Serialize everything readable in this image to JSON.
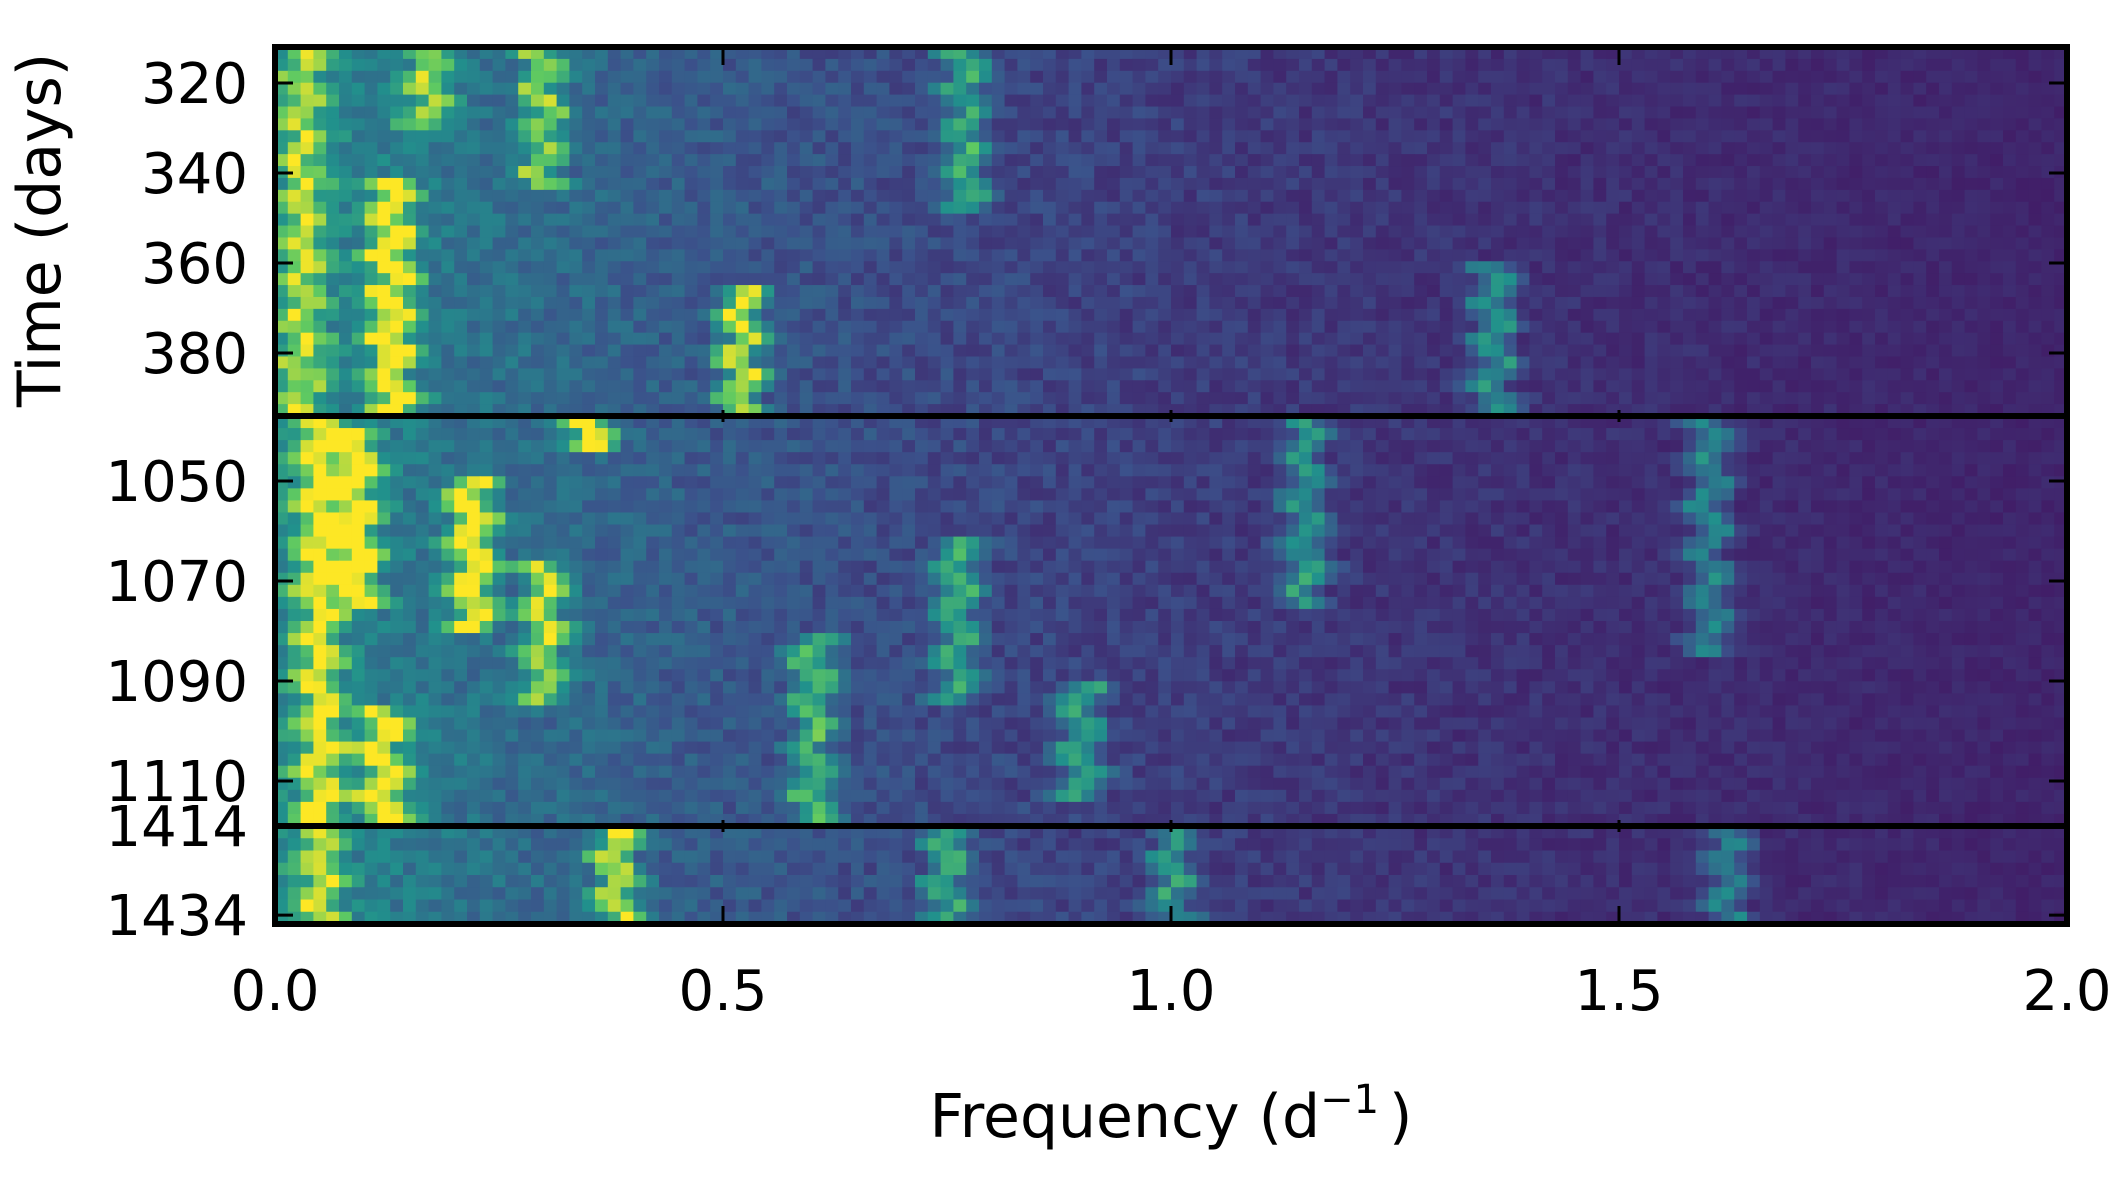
{
  "chart_data": {
    "type": "heatmap",
    "title": "",
    "xlabel": "Frequency (d",
    "xlabel_sup": "−1",
    "xlabel_close": ")",
    "ylabel": "Time (days)",
    "xlim": [
      0.0,
      2.0
    ],
    "x_ticks": [
      "0.0",
      "0.5",
      "1.0",
      "1.5",
      "2.0"
    ],
    "colormap": "viridis",
    "grid": false,
    "legend": "none",
    "panels": [
      {
        "time_range": [
          312,
          394
        ],
        "y_ticks": [
          320,
          340,
          360,
          380
        ],
        "power_ridges": [
          {
            "freq": 0.03,
            "t_start": 312,
            "t_end": 394,
            "power": 0.55
          },
          {
            "freq": 0.13,
            "t_start": 340,
            "t_end": 394,
            "power": 0.9
          },
          {
            "freq": 0.17,
            "t_start": 312,
            "t_end": 330,
            "power": 0.6
          },
          {
            "freq": 0.3,
            "t_start": 312,
            "t_end": 345,
            "power": 0.6
          },
          {
            "freq": 0.52,
            "t_start": 365,
            "t_end": 394,
            "power": 0.8
          },
          {
            "freq": 0.77,
            "t_start": 312,
            "t_end": 350,
            "power": 0.5
          },
          {
            "freq": 1.36,
            "t_start": 360,
            "t_end": 394,
            "power": 0.45
          }
        ]
      },
      {
        "time_range": [
          1037,
          1119
        ],
        "y_ticks": [
          1050,
          1070,
          1090,
          1110
        ],
        "power_ridges": [
          {
            "freq": 0.05,
            "t_start": 1037,
            "t_end": 1119,
            "power": 0.75
          },
          {
            "freq": 0.09,
            "t_start": 1040,
            "t_end": 1075,
            "power": 0.9
          },
          {
            "freq": 0.22,
            "t_start": 1050,
            "t_end": 1080,
            "power": 0.95
          },
          {
            "freq": 0.35,
            "t_start": 1037,
            "t_end": 1045,
            "power": 0.95
          },
          {
            "freq": 0.3,
            "t_start": 1065,
            "t_end": 1095,
            "power": 0.7
          },
          {
            "freq": 0.12,
            "t_start": 1095,
            "t_end": 1119,
            "power": 0.85
          },
          {
            "freq": 0.6,
            "t_start": 1080,
            "t_end": 1119,
            "power": 0.55
          },
          {
            "freq": 0.76,
            "t_start": 1060,
            "t_end": 1095,
            "power": 0.5
          },
          {
            "freq": 0.9,
            "t_start": 1090,
            "t_end": 1115,
            "power": 0.5
          },
          {
            "freq": 1.15,
            "t_start": 1037,
            "t_end": 1075,
            "power": 0.45
          },
          {
            "freq": 1.6,
            "t_start": 1037,
            "t_end": 1085,
            "power": 0.4
          }
        ]
      },
      {
        "time_range": [
          1414,
          1436
        ],
        "y_ticks": [
          1414,
          1434
        ],
        "power_ridges": [
          {
            "freq": 0.05,
            "t_start": 1414,
            "t_end": 1436,
            "power": 0.6
          },
          {
            "freq": 0.38,
            "t_start": 1414,
            "t_end": 1436,
            "power": 0.75
          },
          {
            "freq": 0.75,
            "t_start": 1414,
            "t_end": 1436,
            "power": 0.5
          },
          {
            "freq": 1.0,
            "t_start": 1414,
            "t_end": 1436,
            "power": 0.45
          },
          {
            "freq": 1.62,
            "t_start": 1414,
            "t_end": 1436,
            "power": 0.4
          }
        ]
      }
    ]
  }
}
